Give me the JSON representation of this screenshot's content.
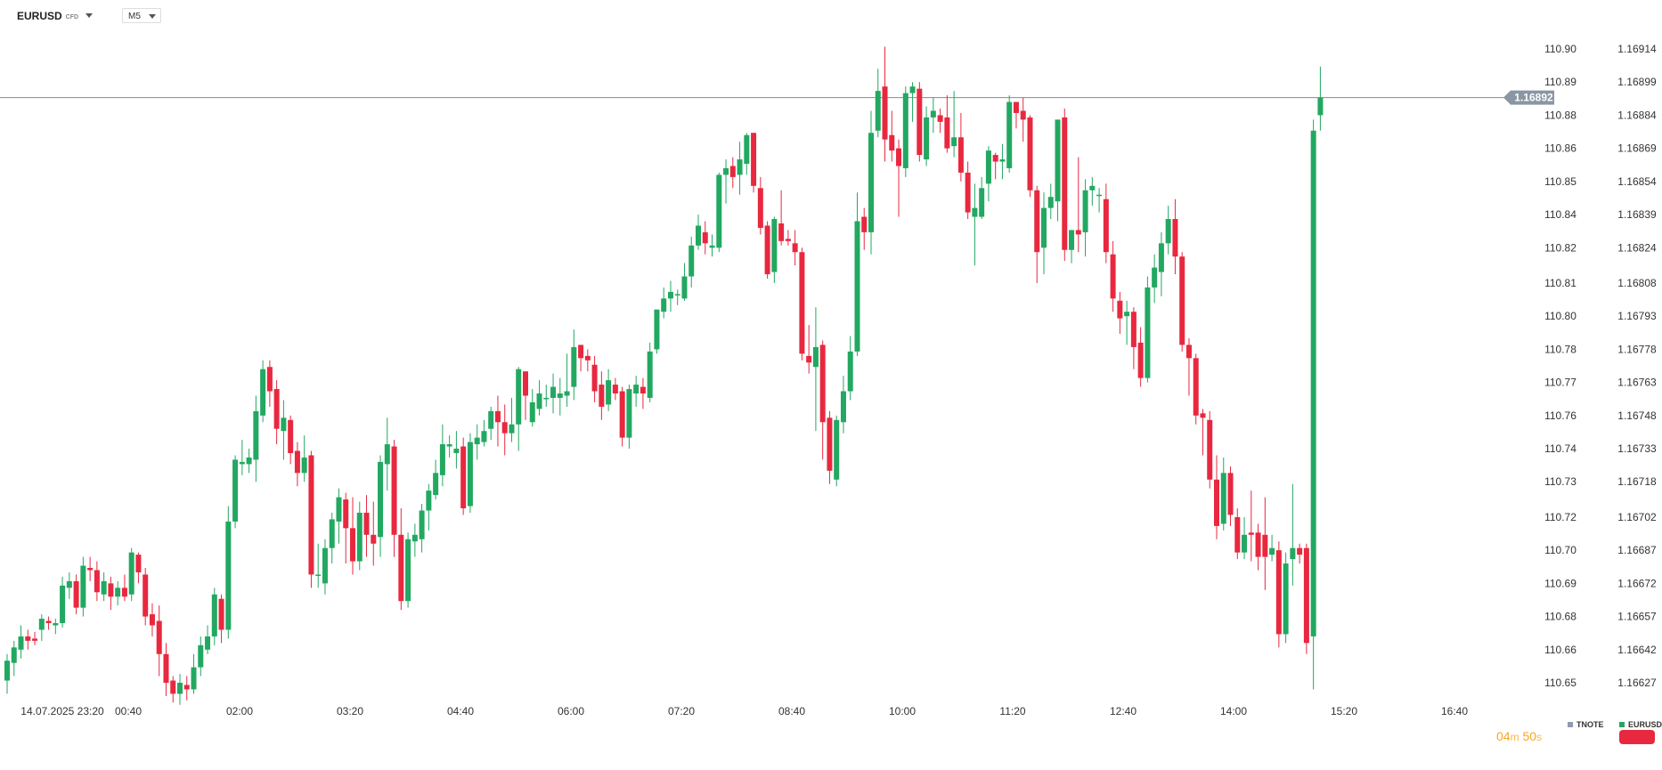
{
  "header": {
    "symbol": "EURUSD",
    "symbol_badge": "CFD",
    "timeframe": "M5"
  },
  "timer": {
    "minutes": "04",
    "min_unit": "m",
    "seconds": "50",
    "sec_unit": "s"
  },
  "legend": [
    {
      "name": "TNOTE",
      "color": "#8e9bb0"
    },
    {
      "name": "EURUSD",
      "color": "#22a861"
    }
  ],
  "colors": {
    "up": "#22a861",
    "down": "#e8283f",
    "current_line": "#7f8c9a",
    "label_bg": "#8a96a3"
  },
  "chart_data": {
    "type": "candlestick",
    "title": "",
    "xlabel": "",
    "ylabel": "",
    "left_axis_ticks": [
      "110.90",
      "110.89",
      "110.88",
      "110.86",
      "110.85",
      "110.84",
      "110.82",
      "110.81",
      "110.80",
      "110.78",
      "110.77",
      "110.76",
      "110.74",
      "110.73",
      "110.72",
      "110.70",
      "110.69",
      "110.68",
      "110.66",
      "110.65"
    ],
    "right_axis_ticks": [
      "1.16914",
      "1.16899",
      "1.16884",
      "1.16869",
      "1.16854",
      "1.16839",
      "1.16824",
      "1.16808",
      "1.16793",
      "1.16778",
      "1.16763",
      "1.16748",
      "1.16733",
      "1.16718",
      "1.16702",
      "1.16687",
      "1.16672",
      "1.16657",
      "1.16642",
      "1.16627"
    ],
    "ylim": [
      1.16612,
      1.16929
    ],
    "current_price": "1.16892",
    "x_ticks": [
      "14.07.2025  23:20",
      "00:40",
      "02:00",
      "03:20",
      "04:40",
      "06:00",
      "07:20",
      "08:40",
      "10:00",
      "11:20",
      "12:40",
      "14:00",
      "15:20",
      "16:40"
    ],
    "candles": [
      [
        1.16628,
        1.16637,
        1.16622,
        1.1664
      ],
      [
        1.16636,
        1.16643,
        1.1663,
        1.16646
      ],
      [
        1.16642,
        1.16648,
        1.16638,
        1.16653
      ],
      [
        1.16648,
        1.16646,
        1.16642,
        1.16651
      ],
      [
        1.16647,
        1.16646,
        1.16644,
        1.1665
      ],
      [
        1.16651,
        1.16656,
        1.16646,
        1.16658
      ],
      [
        1.16655,
        1.16654,
        1.16651,
        1.16657
      ],
      [
        1.16653,
        1.16654,
        1.16649,
        1.16656
      ],
      [
        1.16654,
        1.16671,
        1.16652,
        1.16675
      ],
      [
        1.1667,
        1.16673,
        1.16665,
        1.16677
      ],
      [
        1.16673,
        1.16661,
        1.16658,
        1.16676
      ],
      [
        1.16661,
        1.1668,
        1.16657,
        1.16684
      ],
      [
        1.16679,
        1.16678,
        1.16673,
        1.16684
      ],
      [
        1.16678,
        1.16668,
        1.16664,
        1.16682
      ],
      [
        1.16667,
        1.16673,
        1.16664,
        1.16677
      ],
      [
        1.16672,
        1.16666,
        1.1666,
        1.16675
      ],
      [
        1.16666,
        1.1667,
        1.16662,
        1.16673
      ],
      [
        1.1667,
        1.16666,
        1.16664,
        1.16676
      ],
      [
        1.16667,
        1.16686,
        1.16664,
        1.16688
      ],
      [
        1.16685,
        1.16677,
        1.16672,
        1.16686
      ],
      [
        1.16676,
        1.16657,
        1.16653,
        1.16679
      ],
      [
        1.16658,
        1.16653,
        1.16648,
        1.16663
      ],
      [
        1.16655,
        1.1664,
        1.1663,
        1.16662
      ],
      [
        1.1664,
        1.16627,
        1.16621,
        1.16645
      ],
      [
        1.16628,
        1.16622,
        1.16618,
        1.1663
      ],
      [
        1.16622,
        1.16627,
        1.16617,
        1.16631
      ],
      [
        1.16626,
        1.16624,
        1.16619,
        1.1663
      ],
      [
        1.16624,
        1.16634,
        1.16622,
        1.1664
      ],
      [
        1.16634,
        1.16644,
        1.1663,
        1.16648
      ],
      [
        1.16642,
        1.16648,
        1.1664,
        1.16653
      ],
      [
        1.16648,
        1.16667,
        1.16644,
        1.1667
      ],
      [
        1.16665,
        1.16651,
        1.16645,
        1.16667
      ],
      [
        1.16651,
        1.167,
        1.16647,
        1.16707
      ],
      [
        1.167,
        1.16728,
        1.16697,
        1.1673
      ],
      [
        1.16726,
        1.16727,
        1.16721,
        1.16737
      ],
      [
        1.16726,
        1.16729,
        1.16722,
        1.16733
      ],
      [
        1.16728,
        1.1675,
        1.16718,
        1.16757
      ],
      [
        1.16748,
        1.16769,
        1.16745,
        1.16773
      ],
      [
        1.1677,
        1.16759,
        1.16752,
        1.16773
      ],
      [
        1.1676,
        1.16742,
        1.16735,
        1.16764
      ],
      [
        1.16741,
        1.16747,
        1.16728,
        1.16755
      ],
      [
        1.16746,
        1.16731,
        1.16726,
        1.16748
      ],
      [
        1.16732,
        1.16722,
        1.16716,
        1.16736
      ],
      [
        1.16722,
        1.16729,
        1.16718,
        1.16739
      ],
      [
        1.1673,
        1.16676,
        1.1667,
        1.16732
      ],
      [
        1.16676,
        1.16676,
        1.1667,
        1.1669
      ],
      [
        1.16672,
        1.16688,
        1.16667,
        1.16692
      ],
      [
        1.16688,
        1.16701,
        1.16681,
        1.16704
      ],
      [
        1.167,
        1.16711,
        1.1669,
        1.16715
      ],
      [
        1.1671,
        1.16697,
        1.16681,
        1.16713
      ],
      [
        1.16697,
        1.16682,
        1.16676,
        1.16711
      ],
      [
        1.16682,
        1.16704,
        1.16678,
        1.16709
      ],
      [
        1.16704,
        1.16694,
        1.16684,
        1.16712
      ],
      [
        1.16694,
        1.1669,
        1.1668,
        1.16709
      ],
      [
        1.16693,
        1.16727,
        1.16684,
        1.1673
      ],
      [
        1.16726,
        1.16735,
        1.16714,
        1.16747
      ],
      [
        1.16734,
        1.16694,
        1.16684,
        1.16737
      ],
      [
        1.16694,
        1.16664,
        1.1666,
        1.16706
      ],
      [
        1.16664,
        1.16692,
        1.16661,
        1.16695
      ],
      [
        1.16691,
        1.16694,
        1.16684,
        1.16699
      ],
      [
        1.16692,
        1.16705,
        1.16686,
        1.16708
      ],
      [
        1.16705,
        1.16714,
        1.16696,
        1.16717
      ],
      [
        1.16712,
        1.16722,
        1.1671,
        1.16728
      ],
      [
        1.16721,
        1.16735,
        1.16716,
        1.16744
      ],
      [
        1.16734,
        1.16735,
        1.16729,
        1.16739
      ],
      [
        1.16731,
        1.16733,
        1.16724,
        1.16741
      ],
      [
        1.16734,
        1.16706,
        1.16703,
        1.16738
      ],
      [
        1.16707,
        1.16736,
        1.16704,
        1.1674
      ],
      [
        1.16735,
        1.16738,
        1.16728,
        1.16744
      ],
      [
        1.16736,
        1.16741,
        1.16734,
        1.16746
      ],
      [
        1.16742,
        1.1675,
        1.16737,
        1.16752
      ],
      [
        1.1675,
        1.16745,
        1.16734,
        1.16757
      ],
      [
        1.16745,
        1.1674,
        1.1673,
        1.16753
      ],
      [
        1.1674,
        1.16744,
        1.16736,
        1.16756
      ],
      [
        1.16744,
        1.16769,
        1.16732,
        1.1677
      ],
      [
        1.16768,
        1.16757,
        1.16746,
        1.16765
      ],
      [
        1.16745,
        1.16754,
        1.16743,
        1.1676
      ],
      [
        1.16751,
        1.16758,
        1.16748,
        1.16764
      ],
      [
        1.16756,
        1.16756,
        1.16752,
        1.16762
      ],
      [
        1.16756,
        1.16761,
        1.16749,
        1.16767
      ],
      [
        1.16756,
        1.16758,
        1.16748,
        1.16765
      ],
      [
        1.16757,
        1.16759,
        1.16752,
        1.16776
      ],
      [
        1.16761,
        1.16779,
        1.16755,
        1.16787
      ],
      [
        1.1678,
        1.16774,
        1.16768,
        1.16777
      ],
      [
        1.16775,
        1.16773,
        1.16768,
        1.16778
      ],
      [
        1.16771,
        1.16759,
        1.16754,
        1.16775
      ],
      [
        1.16762,
        1.16752,
        1.16746,
        1.16768
      ],
      [
        1.16753,
        1.16764,
        1.1675,
        1.16769
      ],
      [
        1.16762,
        1.16758,
        1.16755,
        1.16765
      ],
      [
        1.16759,
        1.16738,
        1.16734,
        1.16761
      ],
      [
        1.16738,
        1.1676,
        1.16733,
        1.16762
      ],
      [
        1.16758,
        1.16762,
        1.16752,
        1.16766
      ],
      [
        1.16761,
        1.16758,
        1.16751,
        1.16765
      ],
      [
        1.16756,
        1.16777,
        1.16754,
        1.16781
      ],
      [
        1.16778,
        1.16796,
        1.16776,
        1.16796
      ],
      [
        1.16795,
        1.16801,
        1.16792,
        1.16806
      ],
      [
        1.16801,
        1.16804,
        1.16795,
        1.16809
      ],
      [
        1.16803,
        1.16803,
        1.16798,
        1.16805
      ],
      [
        1.16801,
        1.16811,
        1.168,
        1.16817
      ],
      [
        1.16811,
        1.16825,
        1.16806,
        1.16829
      ],
      [
        1.16825,
        1.16834,
        1.16823,
        1.16839
      ],
      [
        1.16831,
        1.16826,
        1.16821,
        1.16836
      ],
      [
        1.16824,
        1.16825,
        1.1682,
        1.1683
      ],
      [
        1.16824,
        1.16857,
        1.16822,
        1.16858
      ],
      [
        1.16857,
        1.1686,
        1.16844,
        1.16864
      ],
      [
        1.16861,
        1.16856,
        1.16851,
        1.16865
      ],
      [
        1.16857,
        1.16864,
        1.16848,
        1.16872
      ],
      [
        1.16862,
        1.16875,
        1.16857,
        1.16876
      ],
      [
        1.16876,
        1.16852,
        1.16849,
        1.16876
      ],
      [
        1.16851,
        1.16833,
        1.1683,
        1.16856
      ],
      [
        1.16834,
        1.16812,
        1.1681,
        1.16836
      ],
      [
        1.16813,
        1.16837,
        1.16808,
        1.16838
      ],
      [
        1.16835,
        1.16827,
        1.16825,
        1.1685
      ],
      [
        1.16828,
        1.16827,
        1.16825,
        1.16832
      ],
      [
        1.16826,
        1.16822,
        1.16816,
        1.16832
      ],
      [
        1.16822,
        1.16776,
        1.16773,
        1.16824
      ],
      [
        1.16775,
        1.16772,
        1.16767,
        1.16789
      ],
      [
        1.1677,
        1.16779,
        1.16741,
        1.16797
      ],
      [
        1.1678,
        1.16745,
        1.16728,
        1.16782
      ],
      [
        1.16747,
        1.16723,
        1.16717,
        1.1675
      ],
      [
        1.16719,
        1.16746,
        1.16716,
        1.16748
      ],
      [
        1.16745,
        1.16759,
        1.1674,
        1.16766
      ],
      [
        1.16759,
        1.16777,
        1.16755,
        1.16784
      ],
      [
        1.16777,
        1.16836,
        1.16775,
        1.16849
      ],
      [
        1.16838,
        1.16831,
        1.16823,
        1.16842
      ],
      [
        1.16831,
        1.16876,
        1.16821,
        1.16886
      ],
      [
        1.16877,
        1.16895,
        1.16874,
        1.16905
      ],
      [
        1.16897,
        1.16873,
        1.16863,
        1.16915
      ],
      [
        1.16875,
        1.16868,
        1.16863,
        1.16886
      ],
      [
        1.16869,
        1.16861,
        1.16838,
        1.16873
      ],
      [
        1.1686,
        1.16894,
        1.16856,
        1.16897
      ],
      [
        1.16894,
        1.16897,
        1.16881,
        1.16899
      ],
      [
        1.16896,
        1.16866,
        1.16863,
        1.16899
      ],
      [
        1.16864,
        1.16883,
        1.16861,
        1.16888
      ],
      [
        1.16883,
        1.16886,
        1.16876,
        1.16892
      ],
      [
        1.16884,
        1.16881,
        1.16876,
        1.16887
      ],
      [
        1.16883,
        1.16869,
        1.16867,
        1.16893
      ],
      [
        1.1687,
        1.16874,
        1.16865,
        1.16895
      ],
      [
        1.16874,
        1.16858,
        1.16854,
        1.16885
      ],
      [
        1.16858,
        1.1684,
        1.16837,
        1.16863
      ],
      [
        1.16838,
        1.16842,
        1.16816,
        1.16853
      ],
      [
        1.16838,
        1.16851,
        1.16837,
        1.16856
      ],
      [
        1.16853,
        1.16868,
        1.16845,
        1.1687
      ],
      [
        1.16866,
        1.16863,
        1.16855,
        1.16867
      ],
      [
        1.16863,
        1.16864,
        1.16855,
        1.16871
      ],
      [
        1.1686,
        1.1689,
        1.16858,
        1.16893
      ],
      [
        1.1689,
        1.16885,
        1.16878,
        1.1689
      ],
      [
        1.16886,
        1.16882,
        1.16872,
        1.16892
      ],
      [
        1.16883,
        1.1685,
        1.16847,
        1.16884
      ],
      [
        1.1685,
        1.16822,
        1.16808,
        1.16852
      ],
      [
        1.16824,
        1.16842,
        1.16812,
        1.16849
      ],
      [
        1.16842,
        1.16847,
        1.16837,
        1.16853
      ],
      [
        1.16845,
        1.16882,
        1.16836,
        1.16882
      ],
      [
        1.16883,
        1.16823,
        1.16818,
        1.16887
      ],
      [
        1.16823,
        1.16832,
        1.16817,
        1.16832
      ],
      [
        1.16832,
        1.1683,
        1.16822,
        1.16865
      ],
      [
        1.16831,
        1.1685,
        1.1682,
        1.16855
      ],
      [
        1.1685,
        1.16852,
        1.16843,
        1.16856
      ],
      [
        1.16848,
        1.16848,
        1.1684,
        1.16851
      ],
      [
        1.16846,
        1.16822,
        1.16817,
        1.16853
      ],
      [
        1.16821,
        1.16801,
        1.16795,
        1.16827
      ],
      [
        1.168,
        1.16792,
        1.16785,
        1.16804
      ],
      [
        1.16793,
        1.16795,
        1.1678,
        1.168
      ],
      [
        1.16795,
        1.16779,
        1.16769,
        1.16797
      ],
      [
        1.16781,
        1.16765,
        1.16761,
        1.16788
      ],
      [
        1.16765,
        1.16806,
        1.16763,
        1.16811
      ],
      [
        1.16806,
        1.16815,
        1.16799,
        1.16821
      ],
      [
        1.16813,
        1.16826,
        1.16802,
        1.16831
      ],
      [
        1.16826,
        1.16837,
        1.16821,
        1.16843
      ],
      [
        1.16837,
        1.1682,
        1.16812,
        1.16846
      ],
      [
        1.1682,
        1.1678,
        1.16777,
        1.16822
      ],
      [
        1.1678,
        1.16774,
        1.16757,
        1.16783
      ],
      [
        1.16774,
        1.16748,
        1.16744,
        1.16776
      ],
      [
        1.16749,
        1.16747,
        1.1673,
        1.16751
      ],
      [
        1.16746,
        1.16719,
        1.16715,
        1.1675
      ],
      [
        1.16719,
        1.16698,
        1.16692,
        1.1673
      ],
      [
        1.16699,
        1.16722,
        1.16696,
        1.16729
      ],
      [
        1.16722,
        1.16703,
        1.16698,
        1.16725
      ],
      [
        1.16702,
        1.16686,
        1.16683,
        1.16706
      ],
      [
        1.16686,
        1.16694,
        1.16683,
        1.16702
      ],
      [
        1.16695,
        1.16694,
        1.16682,
        1.16714
      ],
      [
        1.16695,
        1.16684,
        1.16678,
        1.16699
      ],
      [
        1.16694,
        1.16684,
        1.16669,
        1.16711
      ],
      [
        1.16685,
        1.16688,
        1.16682,
        1.16694
      ],
      [
        1.16687,
        1.16649,
        1.16643,
        1.16691
      ],
      [
        1.16649,
        1.16681,
        1.16645,
        1.16686
      ],
      [
        1.16683,
        1.16688,
        1.16671,
        1.16717
      ],
      [
        1.16688,
        1.16685,
        1.16681,
        1.1669
      ],
      [
        1.16688,
        1.16645,
        1.1664,
        1.1669
      ],
      [
        1.16648,
        1.16877,
        1.16624,
        1.16882
      ],
      [
        1.16884,
        1.16892,
        1.16877,
        1.16906
      ]
    ]
  }
}
